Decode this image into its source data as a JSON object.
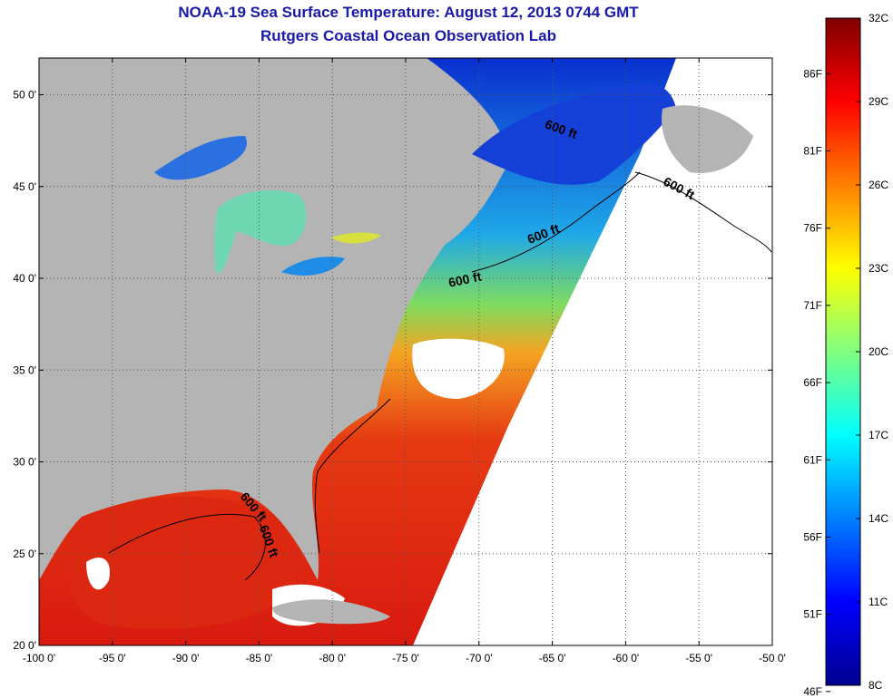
{
  "title_line1": "NOAA-19 Sea Surface Temperature:  August 12, 2013 0744 GMT",
  "title_line2": "Rutgers Coastal Ocean Observation Lab",
  "map": {
    "lon_range": [
      -100,
      -50
    ],
    "lat_range": [
      20,
      52
    ],
    "lon_ticks": [
      {
        "v": -100,
        "label": "-100 0'"
      },
      {
        "v": -95,
        "label": "-95 0'"
      },
      {
        "v": -90,
        "label": "-90 0'"
      },
      {
        "v": -85,
        "label": "-85 0'"
      },
      {
        "v": -80,
        "label": "-80 0'"
      },
      {
        "v": -75,
        "label": "-75 0'"
      },
      {
        "v": -70,
        "label": "-70 0'"
      },
      {
        "v": -65,
        "label": "-65 0'"
      },
      {
        "v": -60,
        "label": "-60 0'"
      },
      {
        "v": -55,
        "label": "-55 0'"
      },
      {
        "v": -50,
        "label": "-50 0'"
      }
    ],
    "lat_ticks": [
      {
        "v": 50,
        "label": "50 0'"
      },
      {
        "v": 45,
        "label": "45 0'"
      },
      {
        "v": 40,
        "label": "40 0'"
      },
      {
        "v": 35,
        "label": "35 0'"
      },
      {
        "v": 30,
        "label": "30 0'"
      },
      {
        "v": 25,
        "label": "25 0'"
      },
      {
        "v": 20,
        "label": "20 0'"
      }
    ],
    "grid": true,
    "land_color": "#b4b4b4",
    "cloud_color": "#ffffff",
    "contour_labels": [
      {
        "text": "600 ft",
        "lon": -64.5,
        "lat": 47.9,
        "rotate": 20
      },
      {
        "text": "600 ft",
        "lon": -56.5,
        "lat": 44.7,
        "rotate": 28
      },
      {
        "text": "600 ft",
        "lon": -65.5,
        "lat": 42.2,
        "rotate": -22
      },
      {
        "text": "600 ft",
        "lon": -70.9,
        "lat": 39.7,
        "rotate": -12
      },
      {
        "text": "600 ft",
        "lon": -85.6,
        "lat": 27.4,
        "rotate": 50
      },
      {
        "text": "600 ft",
        "lon": -84.6,
        "lat": 25.6,
        "rotate": 70
      }
    ]
  },
  "colorbar": {
    "min_c": 8,
    "max_c": 32,
    "colormap": "jet",
    "celsius_labels": [
      {
        "v": 32,
        "label": "32C"
      },
      {
        "v": 29,
        "label": "29C"
      },
      {
        "v": 26,
        "label": "26C"
      },
      {
        "v": 23,
        "label": "23C"
      },
      {
        "v": 20,
        "label": "20C"
      },
      {
        "v": 17,
        "label": "17C"
      },
      {
        "v": 14,
        "label": "14C"
      },
      {
        "v": 11,
        "label": "11C"
      },
      {
        "v": 8,
        "label": "8C"
      }
    ],
    "fahrenheit_labels": [
      {
        "v": 86,
        "label": "86F"
      },
      {
        "v": 81,
        "label": "81F"
      },
      {
        "v": 76,
        "label": "76F"
      },
      {
        "v": 71,
        "label": "71F"
      },
      {
        "v": 66,
        "label": "66F"
      },
      {
        "v": 61,
        "label": "61F"
      },
      {
        "v": 56,
        "label": "56F"
      },
      {
        "v": 51,
        "label": "51F"
      },
      {
        "v": 46,
        "label": "46F"
      }
    ]
  }
}
